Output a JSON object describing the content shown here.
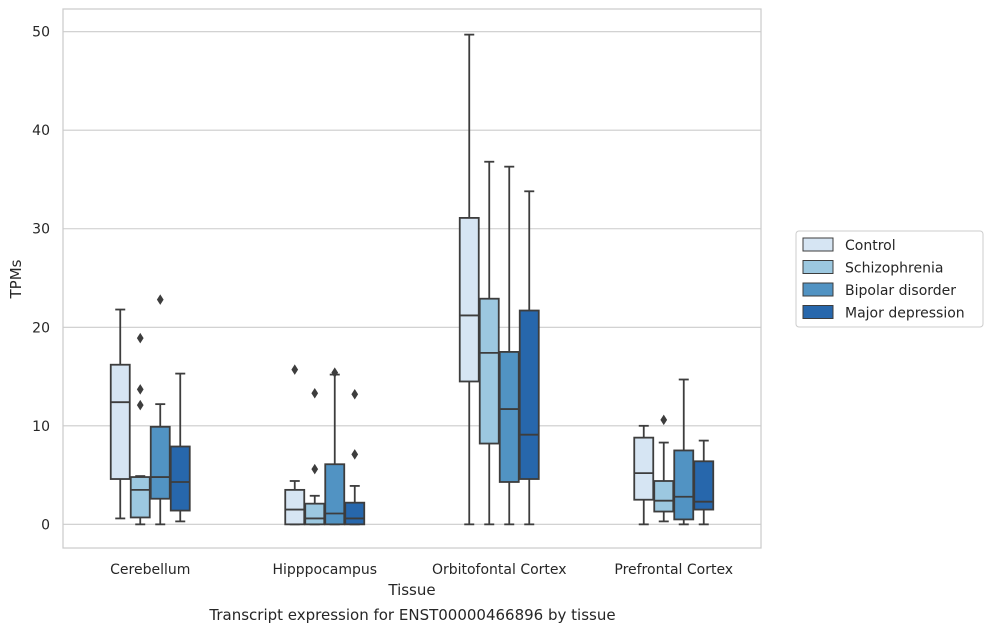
{
  "caption": "Transcript expression for ENST00000466896 by tissue",
  "chart_data": {
    "type": "boxplot",
    "xlabel": "Tissue",
    "ylabel": "TPMs",
    "ylim": [
      -2.4,
      52.3
    ],
    "yticks": [
      0,
      10,
      20,
      30,
      40,
      50
    ],
    "grid": "horizontal",
    "legend_placement": "right",
    "categories": [
      "Cerebellum",
      "Hipppocampus",
      "Orbitofontal Cortex",
      "Prefrontal Cortex"
    ],
    "series": [
      {
        "name": "Control",
        "color": "#d6e5f3",
        "boxes": [
          {
            "whisker_low": 0.6,
            "q1": 4.6,
            "median": 12.4,
            "q3": 16.2,
            "whisker_high": 21.8,
            "outliers": []
          },
          {
            "whisker_low": 0.0,
            "q1": 0.0,
            "median": 1.5,
            "q3": 3.5,
            "whisker_high": 4.4,
            "outliers": [
              15.7
            ]
          },
          {
            "whisker_low": 0.0,
            "q1": 14.5,
            "median": 21.2,
            "q3": 31.1,
            "whisker_high": 49.7,
            "outliers": []
          },
          {
            "whisker_low": 0.0,
            "q1": 2.5,
            "median": 5.2,
            "q3": 8.8,
            "whisker_high": 10.0,
            "outliers": []
          }
        ]
      },
      {
        "name": "Schizophrenia",
        "color": "#9cc8e0",
        "boxes": [
          {
            "whisker_low": 0.0,
            "q1": 0.7,
            "median": 3.5,
            "q3": 4.8,
            "whisker_high": 4.9,
            "outliers": [
              12.1,
              13.7,
              18.9
            ]
          },
          {
            "whisker_low": 0.0,
            "q1": 0.0,
            "median": 0.6,
            "q3": 2.1,
            "whisker_high": 2.9,
            "outliers": [
              5.6,
              13.3
            ]
          },
          {
            "whisker_low": 0.0,
            "q1": 8.2,
            "median": 17.4,
            "q3": 22.9,
            "whisker_high": 36.8,
            "outliers": []
          },
          {
            "whisker_low": 0.3,
            "q1": 1.3,
            "median": 2.4,
            "q3": 4.4,
            "whisker_high": 8.3,
            "outliers": [
              10.6
            ]
          }
        ]
      },
      {
        "name": "Bipolar disorder",
        "color": "#5193c3",
        "boxes": [
          {
            "whisker_low": 0.0,
            "q1": 2.6,
            "median": 4.8,
            "q3": 9.9,
            "whisker_high": 12.2,
            "outliers": [
              22.8
            ]
          },
          {
            "whisker_low": 0.0,
            "q1": 0.0,
            "median": 1.1,
            "q3": 6.1,
            "whisker_high": 15.2,
            "outliers": [
              15.4
            ]
          },
          {
            "whisker_low": 0.0,
            "q1": 4.3,
            "median": 11.7,
            "q3": 17.5,
            "whisker_high": 36.3,
            "outliers": []
          },
          {
            "whisker_low": 0.0,
            "q1": 0.5,
            "median": 2.8,
            "q3": 7.5,
            "whisker_high": 14.7,
            "outliers": []
          }
        ]
      },
      {
        "name": "Major depression",
        "color": "#2767ac",
        "boxes": [
          {
            "whisker_low": 0.3,
            "q1": 1.4,
            "median": 4.3,
            "q3": 7.9,
            "whisker_high": 15.3,
            "outliers": []
          },
          {
            "whisker_low": 0.0,
            "q1": 0.0,
            "median": 0.6,
            "q3": 2.2,
            "whisker_high": 3.9,
            "outliers": [
              7.1,
              13.2
            ]
          },
          {
            "whisker_low": 0.0,
            "q1": 4.6,
            "median": 9.1,
            "q3": 21.7,
            "whisker_high": 33.8,
            "outliers": []
          },
          {
            "whisker_low": 0.0,
            "q1": 1.5,
            "median": 2.3,
            "q3": 6.4,
            "whisker_high": 8.5,
            "outliers": []
          }
        ]
      }
    ]
  }
}
